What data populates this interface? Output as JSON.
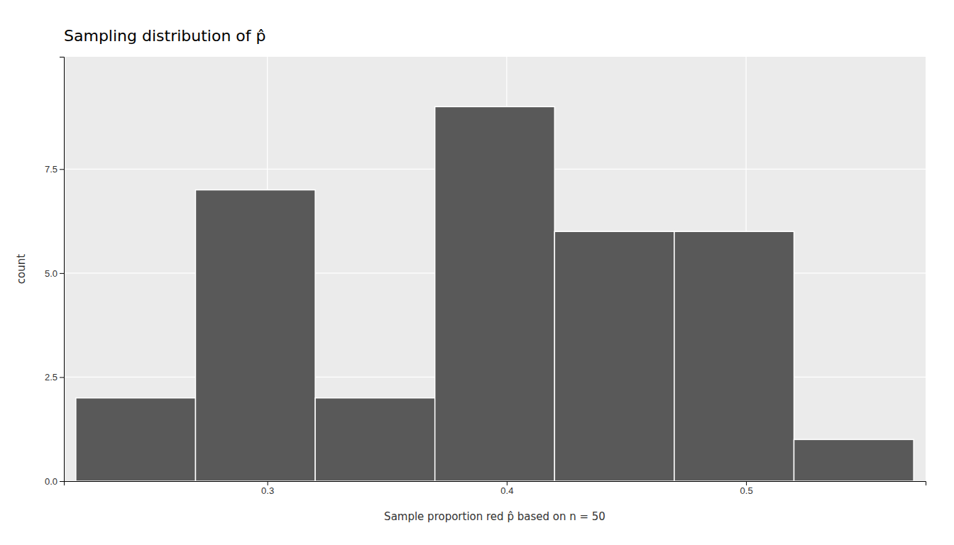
{
  "chart_data": {
    "type": "histogram",
    "title": "Sampling distribution of p̂",
    "x_label": "Sample proportion red p̂ based on n = 50",
    "y_label": "count",
    "bins": [
      0.22,
      0.27,
      0.32,
      0.37,
      0.42,
      0.47,
      0.52,
      0.57
    ],
    "values": [
      2,
      7,
      2,
      9,
      6,
      6,
      1
    ],
    "color": "#595959",
    "xlim": [
      0.215,
      0.575
    ],
    "ylim": [
      0,
      10.2
    ],
    "xticks": [
      0.3,
      0.4,
      0.5
    ],
    "yticks": [
      {
        "value": 0,
        "label": "0.0"
      },
      2.5,
      {
        "value": 5,
        "label": "5.0"
      },
      7.5
    ],
    "grid": true
  }
}
